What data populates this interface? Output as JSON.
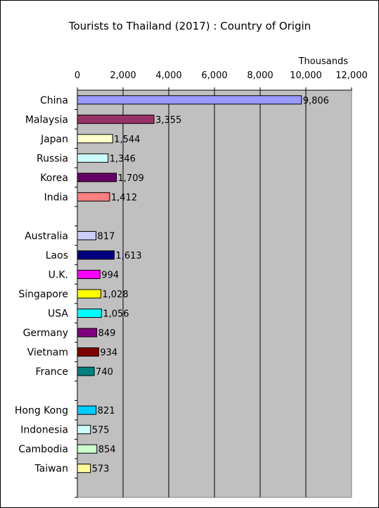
{
  "chart_data": {
    "type": "bar",
    "orientation": "horizontal",
    "title": "Tourists to Thailand (2017) : Country of Origin",
    "unit_label": "Thousands",
    "xlim": [
      0,
      12000
    ],
    "xticks": [
      "0",
      "2,000",
      "4,000",
      "6,000",
      "8,000",
      "10,000",
      "12,000"
    ],
    "tick_values": [
      0,
      2000,
      4000,
      6000,
      8000,
      10000,
      12000
    ],
    "grid": true,
    "plot_background": "#c0c0c0",
    "rows": [
      {
        "category": "China",
        "value": 9806,
        "label": "9,806",
        "color": "#9999ff"
      },
      {
        "category": "Malaysia",
        "value": 3355,
        "label": "3,355",
        "color": "#993366"
      },
      {
        "category": "Japan",
        "value": 1544,
        "label": "1,544",
        "color": "#ffffcc"
      },
      {
        "category": "Russia",
        "value": 1346,
        "label": "1,346",
        "color": "#ccffff"
      },
      {
        "category": "Korea",
        "value": 1709,
        "label": "1,709",
        "color": "#660066"
      },
      {
        "category": "India",
        "value": 1412,
        "label": "1,412",
        "color": "#ff8080"
      },
      {
        "category": "",
        "value": null,
        "label": "",
        "color": ""
      },
      {
        "category": "Australia",
        "value": 817,
        "label": "817",
        "color": "#ccccff"
      },
      {
        "category": "Laos",
        "value": 1613,
        "label": "1,613",
        "color": "#000080"
      },
      {
        "category": "U.K.",
        "value": 994,
        "label": "994",
        "color": "#ff00ff"
      },
      {
        "category": "Singapore",
        "value": 1028,
        "label": "1,028",
        "color": "#ffff00"
      },
      {
        "category": "USA",
        "value": 1056,
        "label": "1,056",
        "color": "#00ffff"
      },
      {
        "category": "Germany",
        "value": 849,
        "label": "849",
        "color": "#800080"
      },
      {
        "category": "Vietnam",
        "value": 934,
        "label": "934",
        "color": "#800000"
      },
      {
        "category": "France",
        "value": 740,
        "label": "740",
        "color": "#008080"
      },
      {
        "category": "",
        "value": null,
        "label": "",
        "color": ""
      },
      {
        "category": "Hong Kong",
        "value": 821,
        "label": "821",
        "color": "#00ccff"
      },
      {
        "category": "Indonesia",
        "value": 575,
        "label": "575",
        "color": "#ccffff"
      },
      {
        "category": "Cambodia",
        "value": 854,
        "label": "854",
        "color": "#ccffcc"
      },
      {
        "category": "Taiwan",
        "value": 573,
        "label": "573",
        "color": "#ffff99"
      },
      {
        "category": "",
        "value": null,
        "label": "",
        "color": ""
      }
    ]
  }
}
